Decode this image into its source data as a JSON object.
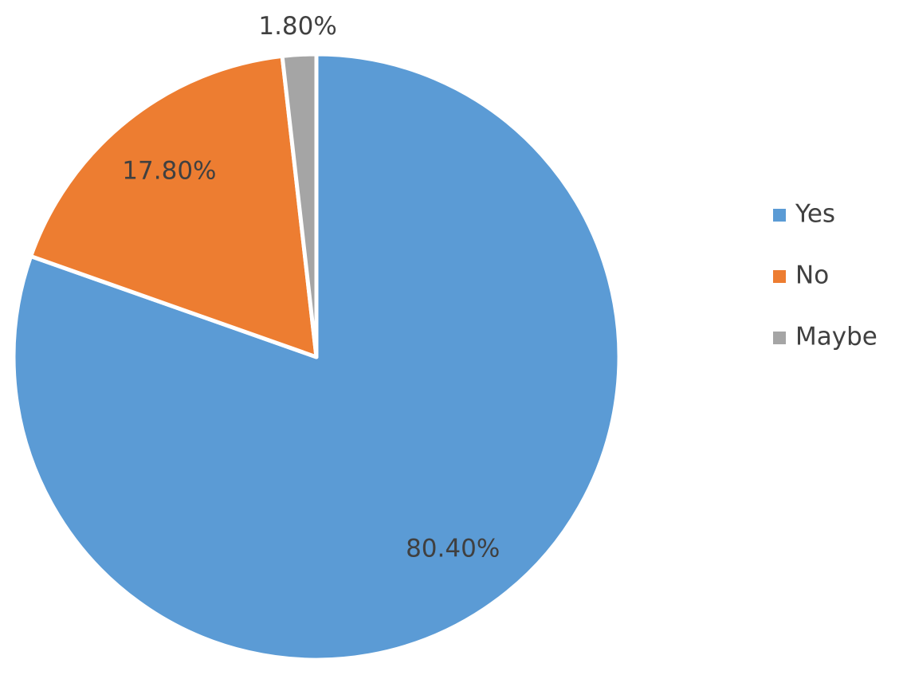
{
  "chart_data": {
    "type": "pie",
    "categories": [
      "Yes",
      "No",
      "Maybe"
    ],
    "values": [
      80.4,
      17.8,
      1.8
    ],
    "value_labels": [
      "80.40%",
      "17.80%",
      "1.80%"
    ],
    "colors": [
      "#5b9bd5",
      "#ed7d31",
      "#a5a5a5"
    ],
    "legend": "right"
  }
}
